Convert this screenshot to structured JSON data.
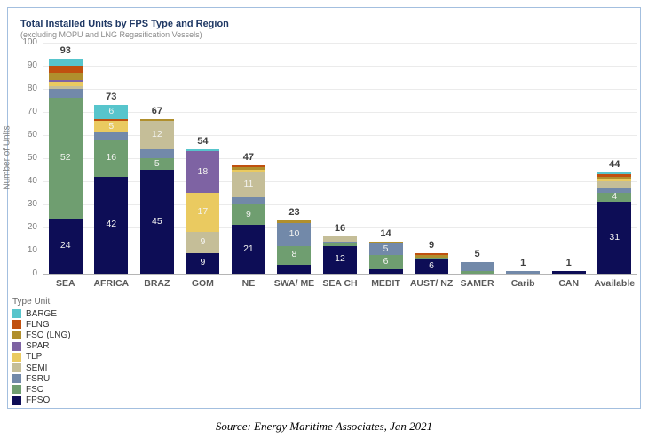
{
  "header": {
    "title": "Total Installed Units by FPS Type and Region",
    "subtitle": "(excluding MOPU and LNG Regasification Vessels)"
  },
  "footer": {
    "source": "Source: Energy Maritime Associates, Jan 2021"
  },
  "chart_data": {
    "type": "bar",
    "stacked": true,
    "title": "Total Installed Units by FPS Type and Region",
    "subtitle": "(excluding MOPU and LNG Regasification Vessels)",
    "xlabel": "",
    "ylabel": "Number of Units",
    "ylim": [
      0,
      100
    ],
    "ytick_interval": 10,
    "grid": true,
    "legend_title": "Type Unit",
    "legend_position": "bottom-left",
    "categories": [
      "SEA",
      "AFRICA",
      "BRAZ",
      "GOM",
      "NE",
      "SWA/ ME",
      "SEA CH",
      "MEDIT",
      "AUST/ NZ",
      "SAMER",
      "Carib",
      "CAN",
      "Available"
    ],
    "totals": [
      93,
      73,
      67,
      54,
      47,
      23,
      16,
      14,
      9,
      5,
      1,
      1,
      44
    ],
    "stack_order_note": "series listed bottom-to-top of stack",
    "series": [
      {
        "name": "FPSO",
        "color": "#0D0D56",
        "values": [
          24,
          42,
          45,
          9,
          21,
          4,
          12,
          2,
          6,
          0,
          0,
          1,
          31
        ],
        "labeled": [
          true,
          true,
          true,
          true,
          true,
          false,
          true,
          false,
          true,
          false,
          false,
          false,
          true
        ]
      },
      {
        "name": "FSO",
        "color": "#6F9E70",
        "values": [
          52,
          16,
          5,
          0,
          9,
          8,
          1,
          6,
          1,
          1,
          0,
          0,
          4
        ],
        "labeled": [
          true,
          true,
          true,
          false,
          true,
          true,
          false,
          true,
          false,
          false,
          false,
          false,
          true
        ]
      },
      {
        "name": "FSRU",
        "color": "#7289A9",
        "values": [
          4,
          3,
          4,
          0,
          3,
          10,
          1,
          5,
          0,
          4,
          1,
          0,
          2
        ],
        "labeled": [
          false,
          false,
          false,
          false,
          false,
          true,
          false,
          true,
          false,
          false,
          false,
          false,
          false
        ]
      },
      {
        "name": "SEMI",
        "color": "#C5BE98",
        "values": [
          1,
          0,
          12,
          9,
          11,
          0,
          2,
          0,
          0,
          0,
          0,
          0,
          3
        ],
        "labeled": [
          false,
          false,
          true,
          true,
          true,
          false,
          false,
          false,
          false,
          false,
          false,
          false,
          false
        ]
      },
      {
        "name": "TLP",
        "color": "#EACA60",
        "values": [
          2,
          5,
          0,
          17,
          1,
          0,
          0,
          0,
          0,
          0,
          0,
          0,
          1
        ],
        "labeled": [
          false,
          true,
          false,
          true,
          false,
          false,
          false,
          false,
          false,
          false,
          false,
          false,
          false
        ]
      },
      {
        "name": "SPAR",
        "color": "#7E63A3",
        "values": [
          1,
          0,
          0,
          18,
          0,
          0,
          0,
          0,
          0,
          0,
          0,
          0,
          0
        ],
        "labeled": [
          false,
          false,
          false,
          true,
          false,
          false,
          false,
          false,
          false,
          false,
          false,
          false,
          false
        ]
      },
      {
        "name": "FSO (LNG)",
        "color": "#B08F2D",
        "values": [
          3,
          0,
          1,
          0,
          1,
          1,
          0,
          1,
          1,
          0,
          0,
          0,
          1
        ],
        "labeled": [
          false,
          false,
          false,
          false,
          false,
          false,
          false,
          false,
          false,
          false,
          false,
          false,
          false
        ]
      },
      {
        "name": "FLNG",
        "color": "#C0500F",
        "values": [
          3,
          1,
          0,
          0,
          1,
          0,
          0,
          0,
          1,
          0,
          0,
          0,
          1
        ],
        "labeled": [
          false,
          false,
          false,
          false,
          false,
          false,
          false,
          false,
          false,
          false,
          false,
          false,
          false
        ]
      },
      {
        "name": "BARGE",
        "color": "#57C5CC",
        "values": [
          3,
          6,
          0,
          1,
          0,
          0,
          0,
          0,
          0,
          0,
          0,
          0,
          1
        ],
        "labeled": [
          false,
          true,
          false,
          false,
          false,
          false,
          false,
          false,
          false,
          false,
          false,
          false,
          false
        ]
      }
    ],
    "legend_items_top_to_bottom": [
      "BARGE",
      "FLNG",
      "FSO (LNG)",
      "SPAR",
      "TLP",
      "SEMI",
      "FSRU",
      "FSO",
      "FPSO"
    ]
  }
}
